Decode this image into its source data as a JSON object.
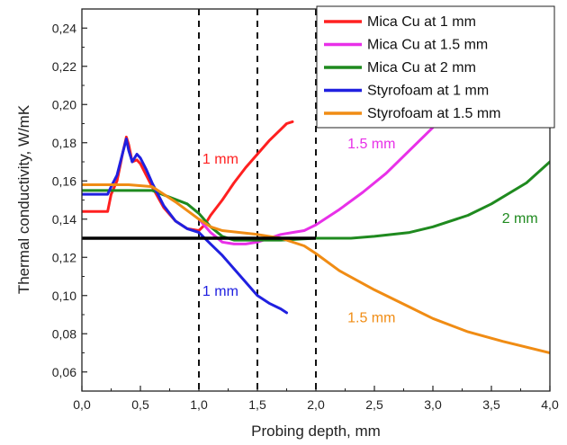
{
  "chart_data": {
    "type": "line",
    "xlabel": "Probing depth, mm",
    "ylabel": "Thermal conductivity, W/mK",
    "xlim": [
      0,
      4
    ],
    "ylim": [
      0.05,
      0.25
    ],
    "xticks": [
      "0,0",
      "0,5",
      "1,0",
      "1,5",
      "2,0",
      "2,5",
      "3,0",
      "3,5",
      "4,0"
    ],
    "xtick_values": [
      0,
      0.5,
      1,
      1.5,
      2,
      2.5,
      3,
      3.5,
      4
    ],
    "yticks": [
      "0,06",
      "0,08",
      "0,10",
      "0,12",
      "0,14",
      "0,16",
      "0,18",
      "0,20",
      "0,22",
      "0,24"
    ],
    "ytick_values": [
      0.06,
      0.08,
      0.1,
      0.12,
      0.14,
      0.16,
      0.18,
      0.2,
      0.22,
      0.24
    ],
    "grid": false,
    "legend_position": "top-right",
    "vertical_lines": [
      1.0,
      1.5,
      2.0
    ],
    "reference_line": {
      "y": 0.13,
      "x_range": [
        0,
        2.0
      ],
      "color": "#000000"
    },
    "series": [
      {
        "name": "Mica Cu at 1 mm",
        "color": "#ff2020",
        "x": [
          0.0,
          0.22,
          0.25,
          0.3,
          0.35,
          0.38,
          0.4,
          0.43,
          0.47,
          0.5,
          0.55,
          0.6,
          0.7,
          0.8,
          0.9,
          1.0,
          1.05,
          1.1,
          1.2,
          1.3,
          1.4,
          1.5,
          1.6,
          1.7,
          1.75,
          1.8
        ],
        "y": [
          0.144,
          0.144,
          0.153,
          0.16,
          0.175,
          0.183,
          0.179,
          0.17,
          0.171,
          0.169,
          0.163,
          0.157,
          0.146,
          0.139,
          0.135,
          0.134,
          0.137,
          0.142,
          0.15,
          0.159,
          0.167,
          0.174,
          0.181,
          0.187,
          0.19,
          0.191
        ]
      },
      {
        "name": "Mica Cu at 1.5 mm",
        "color": "#e830e8",
        "x": [
          1.0,
          1.1,
          1.2,
          1.3,
          1.4,
          1.5,
          1.6,
          1.7,
          1.8,
          1.9,
          2.0,
          2.2,
          2.4,
          2.6,
          2.8,
          3.0,
          3.1
        ],
        "y": [
          0.14,
          0.133,
          0.128,
          0.127,
          0.127,
          0.128,
          0.13,
          0.132,
          0.133,
          0.134,
          0.137,
          0.145,
          0.154,
          0.164,
          0.176,
          0.188,
          0.195
        ]
      },
      {
        "name": "Mica Cu at 2 mm",
        "color": "#1f8a1f",
        "x": [
          0.0,
          0.6,
          0.9,
          1.0,
          1.1,
          1.2,
          1.3,
          1.4,
          1.5,
          1.7,
          2.0,
          2.3,
          2.5,
          2.8,
          3.0,
          3.3,
          3.5,
          3.8,
          4.0
        ],
        "y": [
          0.155,
          0.155,
          0.148,
          0.143,
          0.136,
          0.131,
          0.129,
          0.129,
          0.129,
          0.129,
          0.13,
          0.13,
          0.131,
          0.133,
          0.136,
          0.142,
          0.148,
          0.159,
          0.17
        ]
      },
      {
        "name": "Styrofoam at 1 mm",
        "color": "#2020e0",
        "x": [
          0.0,
          0.22,
          0.25,
          0.3,
          0.35,
          0.38,
          0.4,
          0.43,
          0.47,
          0.5,
          0.55,
          0.6,
          0.7,
          0.8,
          0.9,
          1.0,
          1.1,
          1.2,
          1.3,
          1.4,
          1.5,
          1.6,
          1.7,
          1.75
        ],
        "y": [
          0.153,
          0.153,
          0.157,
          0.163,
          0.175,
          0.182,
          0.176,
          0.17,
          0.174,
          0.172,
          0.166,
          0.159,
          0.147,
          0.139,
          0.135,
          0.133,
          0.127,
          0.121,
          0.114,
          0.107,
          0.1,
          0.096,
          0.093,
          0.091
        ]
      },
      {
        "name": "Styrofoam at 1.5 mm",
        "color": "#f08c14",
        "x": [
          0.0,
          0.4,
          0.6,
          0.8,
          1.0,
          1.1,
          1.2,
          1.5,
          1.7,
          1.9,
          2.0,
          2.2,
          2.5,
          2.8,
          3.0,
          3.3,
          3.6,
          4.0
        ],
        "y": [
          0.158,
          0.158,
          0.157,
          0.149,
          0.14,
          0.136,
          0.134,
          0.132,
          0.13,
          0.126,
          0.122,
          0.113,
          0.103,
          0.094,
          0.088,
          0.081,
          0.076,
          0.07
        ]
      }
    ],
    "annotations": [
      {
        "text": "1 mm",
        "x": 1.03,
        "y": 0.169,
        "color": "#ff2020"
      },
      {
        "text": "1.5 mm",
        "x": 2.27,
        "y": 0.177,
        "color": "#e830e8"
      },
      {
        "text": "2 mm",
        "x": 3.59,
        "y": 0.138,
        "color": "#1f8a1f"
      },
      {
        "text": "1 mm",
        "x": 1.03,
        "y": 0.1,
        "color": "#2020e0"
      },
      {
        "text": "1.5 mm",
        "x": 2.27,
        "y": 0.086,
        "color": "#f08c14"
      }
    ]
  }
}
